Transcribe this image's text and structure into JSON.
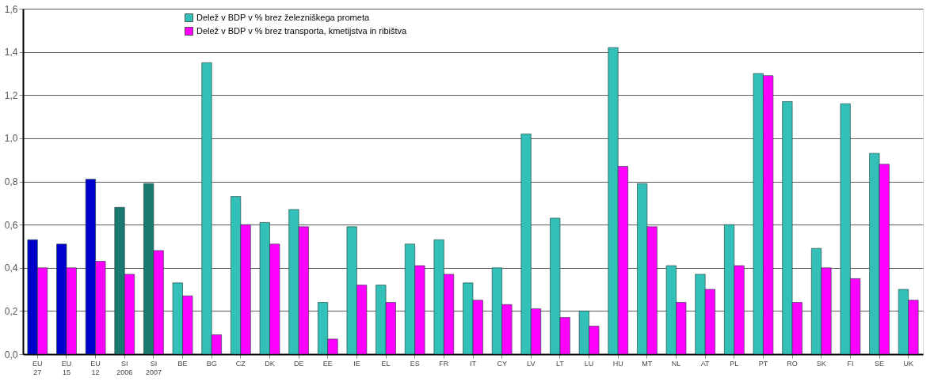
{
  "chart_data": {
    "type": "bar",
    "categories": [
      "EU 27",
      "EU 15",
      "EU 12",
      "SI 2006",
      "SI 2007",
      "BE",
      "BG",
      "CZ",
      "DK",
      "DE",
      "EE",
      "IE",
      "EL",
      "ES",
      "FR",
      "IT",
      "CY",
      "LV",
      "LT",
      "LU",
      "HU",
      "MT",
      "NL",
      "AT",
      "PL",
      "PT",
      "RO",
      "SK",
      "FI",
      "SE",
      "UK"
    ],
    "series": [
      {
        "name": "Delež v BDP v % brez železniškega prometa",
        "color": "#33c0b8",
        "colors": [
          "#0000cc",
          "#0000cc",
          "#0000cc",
          "#1a7a70",
          "#1a7a70",
          "#33c0b8",
          "#33c0b8",
          "#33c0b8",
          "#33c0b8",
          "#33c0b8",
          "#33c0b8",
          "#33c0b8",
          "#33c0b8",
          "#33c0b8",
          "#33c0b8",
          "#33c0b8",
          "#33c0b8",
          "#33c0b8",
          "#33c0b8",
          "#33c0b8",
          "#33c0b8",
          "#33c0b8",
          "#33c0b8",
          "#33c0b8",
          "#33c0b8",
          "#33c0b8",
          "#33c0b8",
          "#33c0b8",
          "#33c0b8",
          "#33c0b8",
          "#33c0b8"
        ],
        "values": [
          0.53,
          0.51,
          0.81,
          0.68,
          0.79,
          0.33,
          1.35,
          0.73,
          0.61,
          0.67,
          0.24,
          0.59,
          0.32,
          0.51,
          0.53,
          0.33,
          0.4,
          1.02,
          0.63,
          0.2,
          1.42,
          0.79,
          0.41,
          0.37,
          0.6,
          1.3,
          1.17,
          0.49,
          1.16,
          0.93,
          0.3
        ]
      },
      {
        "name": "Delež v BDP v % brez transporta, kmetijstva in ribištva",
        "color": "#ff00ff",
        "values": [
          0.4,
          0.4,
          0.43,
          0.37,
          0.48,
          0.27,
          0.09,
          0.6,
          0.51,
          0.59,
          0.07,
          0.32,
          0.24,
          0.41,
          0.37,
          0.25,
          0.23,
          0.21,
          0.17,
          0.13,
          0.87,
          0.59,
          0.24,
          0.3,
          0.41,
          1.29,
          0.24,
          0.4,
          0.35,
          0.88,
          0.25
        ]
      }
    ],
    "ylim": [
      0,
      1.6
    ],
    "yticks": [
      {
        "value": 0,
        "label": "0,0"
      },
      {
        "value": 0.2,
        "label": "0,2"
      },
      {
        "value": 0.4,
        "label": "0,4"
      },
      {
        "value": 0.6,
        "label": "0,6"
      },
      {
        "value": 0.8,
        "label": "0,8"
      },
      {
        "value": 1.0,
        "label": "1,0"
      },
      {
        "value": 1.2,
        "label": "1,2"
      },
      {
        "value": 1.4,
        "label": "1,4"
      },
      {
        "value": 1.6,
        "label": "1,6"
      }
    ],
    "grid": "y",
    "legend": "top"
  }
}
